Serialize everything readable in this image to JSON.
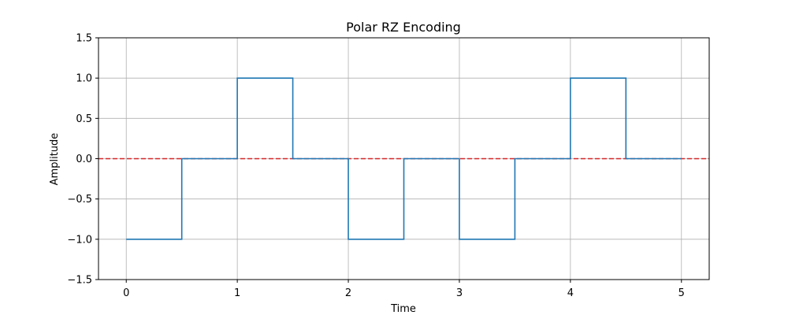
{
  "chart_data": {
    "type": "line",
    "title": "Polar RZ Encoding",
    "xlabel": "Time",
    "ylabel": "Amplitude",
    "xlim": [
      -0.25,
      5.25
    ],
    "ylim": [
      -1.5,
      1.5
    ],
    "xticks": [
      0,
      1,
      2,
      3,
      4,
      5
    ],
    "yticks": [
      -1.5,
      -1.0,
      -0.5,
      0.0,
      0.5,
      1.0,
      1.5
    ],
    "xtick_labels": [
      "0",
      "1",
      "2",
      "3",
      "4",
      "5"
    ],
    "ytick_labels": [
      "−1.5",
      "−1.0",
      "−0.5",
      "0.0",
      "0.5",
      "1.0",
      "1.5"
    ],
    "grid": true,
    "series": [
      {
        "style": "step",
        "color": "#1f77b4",
        "x": [
          0,
          0.5,
          0.5,
          1,
          1,
          1.5,
          1.5,
          2,
          2,
          2.5,
          2.5,
          3,
          3,
          3.5,
          3.5,
          4,
          4,
          4.5,
          4.5,
          5
        ],
        "y": [
          -1,
          -1,
          0,
          0,
          1,
          1,
          0,
          0,
          -1,
          -1,
          0,
          0,
          -1,
          -1,
          0,
          0,
          1,
          1,
          0,
          0
        ]
      }
    ],
    "reference_line": {
      "y": 0,
      "color": "#d62728",
      "style": "dashed"
    }
  }
}
